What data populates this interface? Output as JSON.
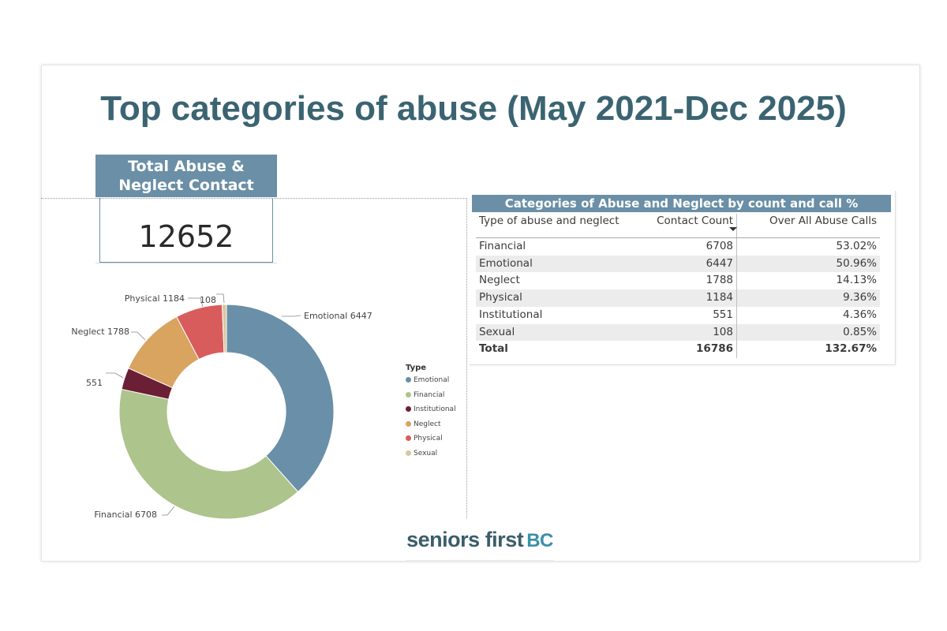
{
  "page": {
    "title": "Top categories of abuse (May 2021-Dec 2025)"
  },
  "kpi": {
    "label_line1": "Total Abuse &",
    "label_line2": "Neglect Contact",
    "value": "12652"
  },
  "logo": {
    "text_seniors": "seniors",
    "text_first": "first",
    "text_bc": "BC"
  },
  "chart_data": [
    {
      "type": "pie",
      "variant": "donut",
      "legend_title": "Type",
      "legend_position": "right",
      "categories": [
        "Emotional",
        "Financial",
        "Institutional",
        "Neglect",
        "Physical",
        "Sexual"
      ],
      "values": [
        6447,
        6708,
        551,
        1788,
        1184,
        108
      ],
      "colors": [
        "#6a8fa8",
        "#adc48c",
        "#6b1f35",
        "#d9a45f",
        "#d95c5c",
        "#d9c7a0"
      ],
      "data_labels": [
        "Emotional 6447",
        "Financial 6708",
        "551",
        "Neglect 1788",
        "Physical 1184",
        "108"
      ]
    },
    {
      "type": "table",
      "title": "Categories of Abuse and Neglect by count and call %",
      "columns": [
        "Type of abuse and neglect",
        "Contact Count",
        "Over All Abuse Calls"
      ],
      "sorted_column": "Contact Count",
      "rows": [
        [
          "Financial",
          "6708",
          "53.02%"
        ],
        [
          "Emotional",
          "6447",
          "50.96%"
        ],
        [
          "Neglect",
          "1788",
          "14.13%"
        ],
        [
          "Physical",
          "1184",
          "9.36%"
        ],
        [
          "Institutional",
          "551",
          "4.36%"
        ],
        [
          "Sexual",
          "108",
          "0.85%"
        ]
      ],
      "total": [
        "Total",
        "16786",
        "132.67%"
      ]
    }
  ]
}
